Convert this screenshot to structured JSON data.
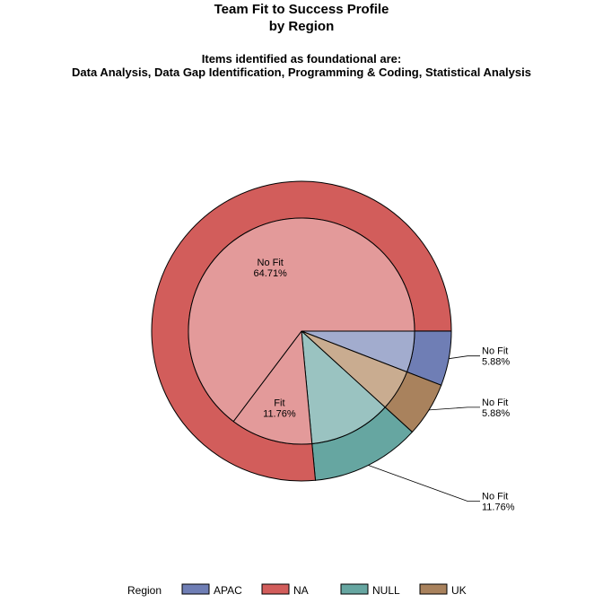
{
  "chart_data": {
    "type": "pie",
    "title": "Team Fit to Success Profile",
    "title2": "by Region",
    "subtitle": "Items identified as foundational are:",
    "subtitle2": "Data Analysis, Data Gap Identification, Programming & Coding, Statistical Analysis",
    "legend": {
      "title": "Region",
      "placement": "bottom",
      "entries": [
        {
          "name": "APAC",
          "color": "#6f7eb5"
        },
        {
          "name": "NA",
          "color": "#d25d5b"
        },
        {
          "name": "NULL",
          "color": "#66a6a1"
        },
        {
          "name": "UK",
          "color": "#a9825d"
        }
      ]
    },
    "outer_ring": [
      {
        "region": "APAC",
        "percent": 5.88,
        "color": "#6f7eb5"
      },
      {
        "region": "UK",
        "percent": 5.88,
        "color": "#a9825d"
      },
      {
        "region": "NULL",
        "percent": 11.76,
        "color": "#66a6a1"
      },
      {
        "region": "NA",
        "percent": 76.47,
        "color": "#d25d5b"
      }
    ],
    "inner_pie": [
      {
        "region": "APAC",
        "category": "No Fit",
        "percent": 5.88,
        "label": "No Fit",
        "value_label": "5.88%",
        "color": "#a2acce"
      },
      {
        "region": "UK",
        "category": "No Fit",
        "percent": 5.88,
        "label": "No Fit",
        "value_label": "5.88%",
        "color": "#c9ac90"
      },
      {
        "region": "NULL",
        "category": "No Fit",
        "percent": 11.76,
        "label": "No Fit",
        "value_label": "11.76%",
        "color": "#9ac3c1"
      },
      {
        "region": "NA",
        "category": "Fit",
        "percent": 11.76,
        "label": "Fit",
        "value_label": "11.76%",
        "color": "#e39a9a"
      },
      {
        "region": "NA",
        "category": "No Fit",
        "percent": 64.71,
        "label": "No Fit",
        "value_label": "64.71%",
        "color": "#e39a9a"
      }
    ]
  }
}
